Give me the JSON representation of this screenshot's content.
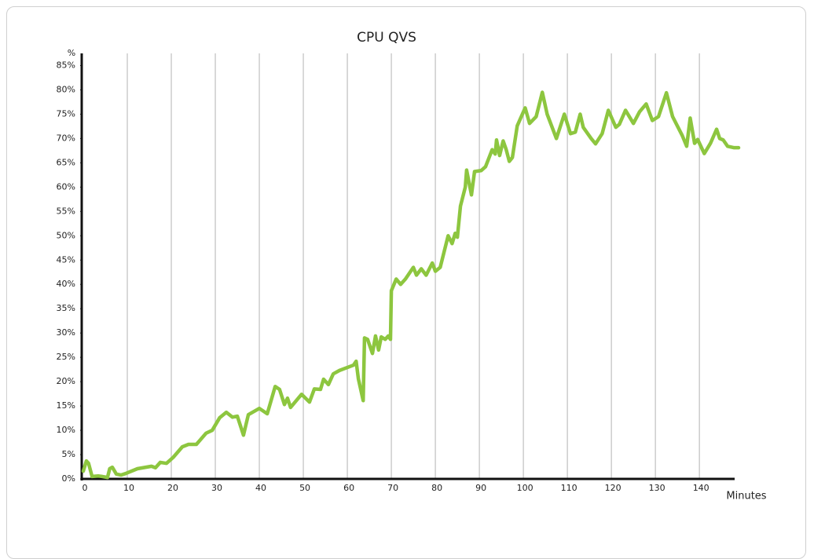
{
  "chart_data": {
    "type": "line",
    "title": "CPU QVS",
    "y_label": "%",
    "x_label": "Minutes",
    "xlim": [
      0,
      148
    ],
    "xticks": [
      0,
      10,
      20,
      30,
      40,
      50,
      60,
      70,
      80,
      90,
      100,
      110,
      120,
      130,
      140
    ],
    "ylim": [
      0,
      87.5
    ],
    "yticks": [
      {
        "value": 0,
        "label": "0%"
      },
      {
        "value": 5,
        "label": "5%"
      },
      {
        "value": 10,
        "label": "10%"
      },
      {
        "value": 15,
        "label": "15%"
      },
      {
        "value": 20,
        "label": "20%"
      },
      {
        "value": 25,
        "label": "25%"
      },
      {
        "value": 30,
        "label": "30%"
      },
      {
        "value": 35,
        "label": "35%"
      },
      {
        "value": 40,
        "label": "40%"
      },
      {
        "value": 45,
        "label": "45%"
      },
      {
        "value": 50,
        "label": "50%"
      },
      {
        "value": 55,
        "label": "55%"
      },
      {
        "value": 60,
        "label": "60%"
      },
      {
        "value": 65,
        "label": "65%"
      },
      {
        "value": 70,
        "label": "70%"
      },
      {
        "value": 75,
        "label": "75%"
      },
      {
        "value": 80,
        "label": "80%"
      },
      {
        "value": 85,
        "label": "85%"
      }
    ],
    "grid": true,
    "series": [
      {
        "name": "CPU",
        "color": "#8dc63f",
        "x": [
          0,
          0.7,
          1.2,
          2,
          3.4,
          4.3,
          5.5,
          6,
          6.6,
          7.5,
          8.6,
          9.6,
          12.3,
          15.5,
          16.4,
          17.5,
          18.9,
          20.4,
          22.5,
          23.9,
          25.7,
          27.9,
          29.3,
          31,
          32.5,
          33.9,
          35,
          36.4,
          37.5,
          40,
          41.8,
          43.6,
          44.6,
          45.7,
          46.4,
          47.1,
          49.6,
          51.4,
          52.5,
          53.9,
          54.6,
          55.7,
          56.8,
          58.2,
          61.4,
          62,
          62.5,
          63.6,
          63.9,
          64.6,
          65.7,
          66.4,
          67.1,
          67.7,
          68.6,
          69.3,
          69.8,
          70,
          71.1,
          72.1,
          73.2,
          75,
          75.7,
          76.8,
          77.9,
          79.3,
          80,
          81.1,
          82.9,
          83.8,
          84.5,
          85,
          85.7,
          86.8,
          87.1,
          88.2,
          88.9,
          90.4,
          91.4,
          92.9,
          93.6,
          93.9,
          94.6,
          95.4,
          96.1,
          96.8,
          97.5,
          98.6,
          100.4,
          101.4,
          102.9,
          104.3,
          105.4,
          107.5,
          109.3,
          110.7,
          111.8,
          112.9,
          113.6,
          115.4,
          116.4,
          117.9,
          119.3,
          121,
          121.8,
          123.2,
          125,
          126.4,
          127.9,
          129.3,
          130.7,
          132.5,
          133.9,
          136.1,
          137.1,
          137.9,
          138.9,
          139.6,
          141.1,
          142.5,
          143.9,
          144.6,
          145.4,
          146.4,
          147.9,
          148.9
        ],
        "values": [
          1.6,
          3.7,
          3.2,
          0.5,
          0.6,
          0.5,
          0.3,
          2.1,
          2.4,
          1,
          0.8,
          1.1,
          2.1,
          2.6,
          2.3,
          3.4,
          3.2,
          4.4,
          6.6,
          7.1,
          7.1,
          9.4,
          10,
          12.6,
          13.7,
          12.7,
          12.9,
          9,
          13.2,
          14.5,
          13.4,
          19,
          18.4,
          15.3,
          16.6,
          14.7,
          17.4,
          15.8,
          18.5,
          18.4,
          20.5,
          19.4,
          21.6,
          22.3,
          23.4,
          24.2,
          20.6,
          16.1,
          29,
          28.7,
          25.8,
          29.4,
          26.5,
          29.2,
          28.7,
          29.4,
          28.7,
          38.7,
          41.1,
          40,
          41.1,
          43.5,
          41.9,
          43.2,
          41.9,
          44.4,
          42.7,
          43.5,
          50,
          48.4,
          50.5,
          49.7,
          56.1,
          60,
          63.5,
          58.4,
          63.2,
          63.4,
          64.2,
          67.7,
          66.8,
          69.7,
          66.5,
          69.5,
          67.7,
          65.3,
          66.1,
          72.6,
          76.3,
          73.1,
          74.5,
          79.5,
          75,
          70,
          75,
          71,
          71.3,
          75,
          72.3,
          70,
          68.9,
          71,
          75.8,
          72.3,
          72.9,
          75.8,
          73.1,
          75.5,
          77.1,
          73.7,
          74.5,
          79.4,
          74.5,
          70.6,
          68.4,
          74.2,
          69,
          69.8,
          66.9,
          69,
          71.9,
          70,
          69.7,
          68.4,
          68.1,
          68.1
        ]
      }
    ]
  }
}
